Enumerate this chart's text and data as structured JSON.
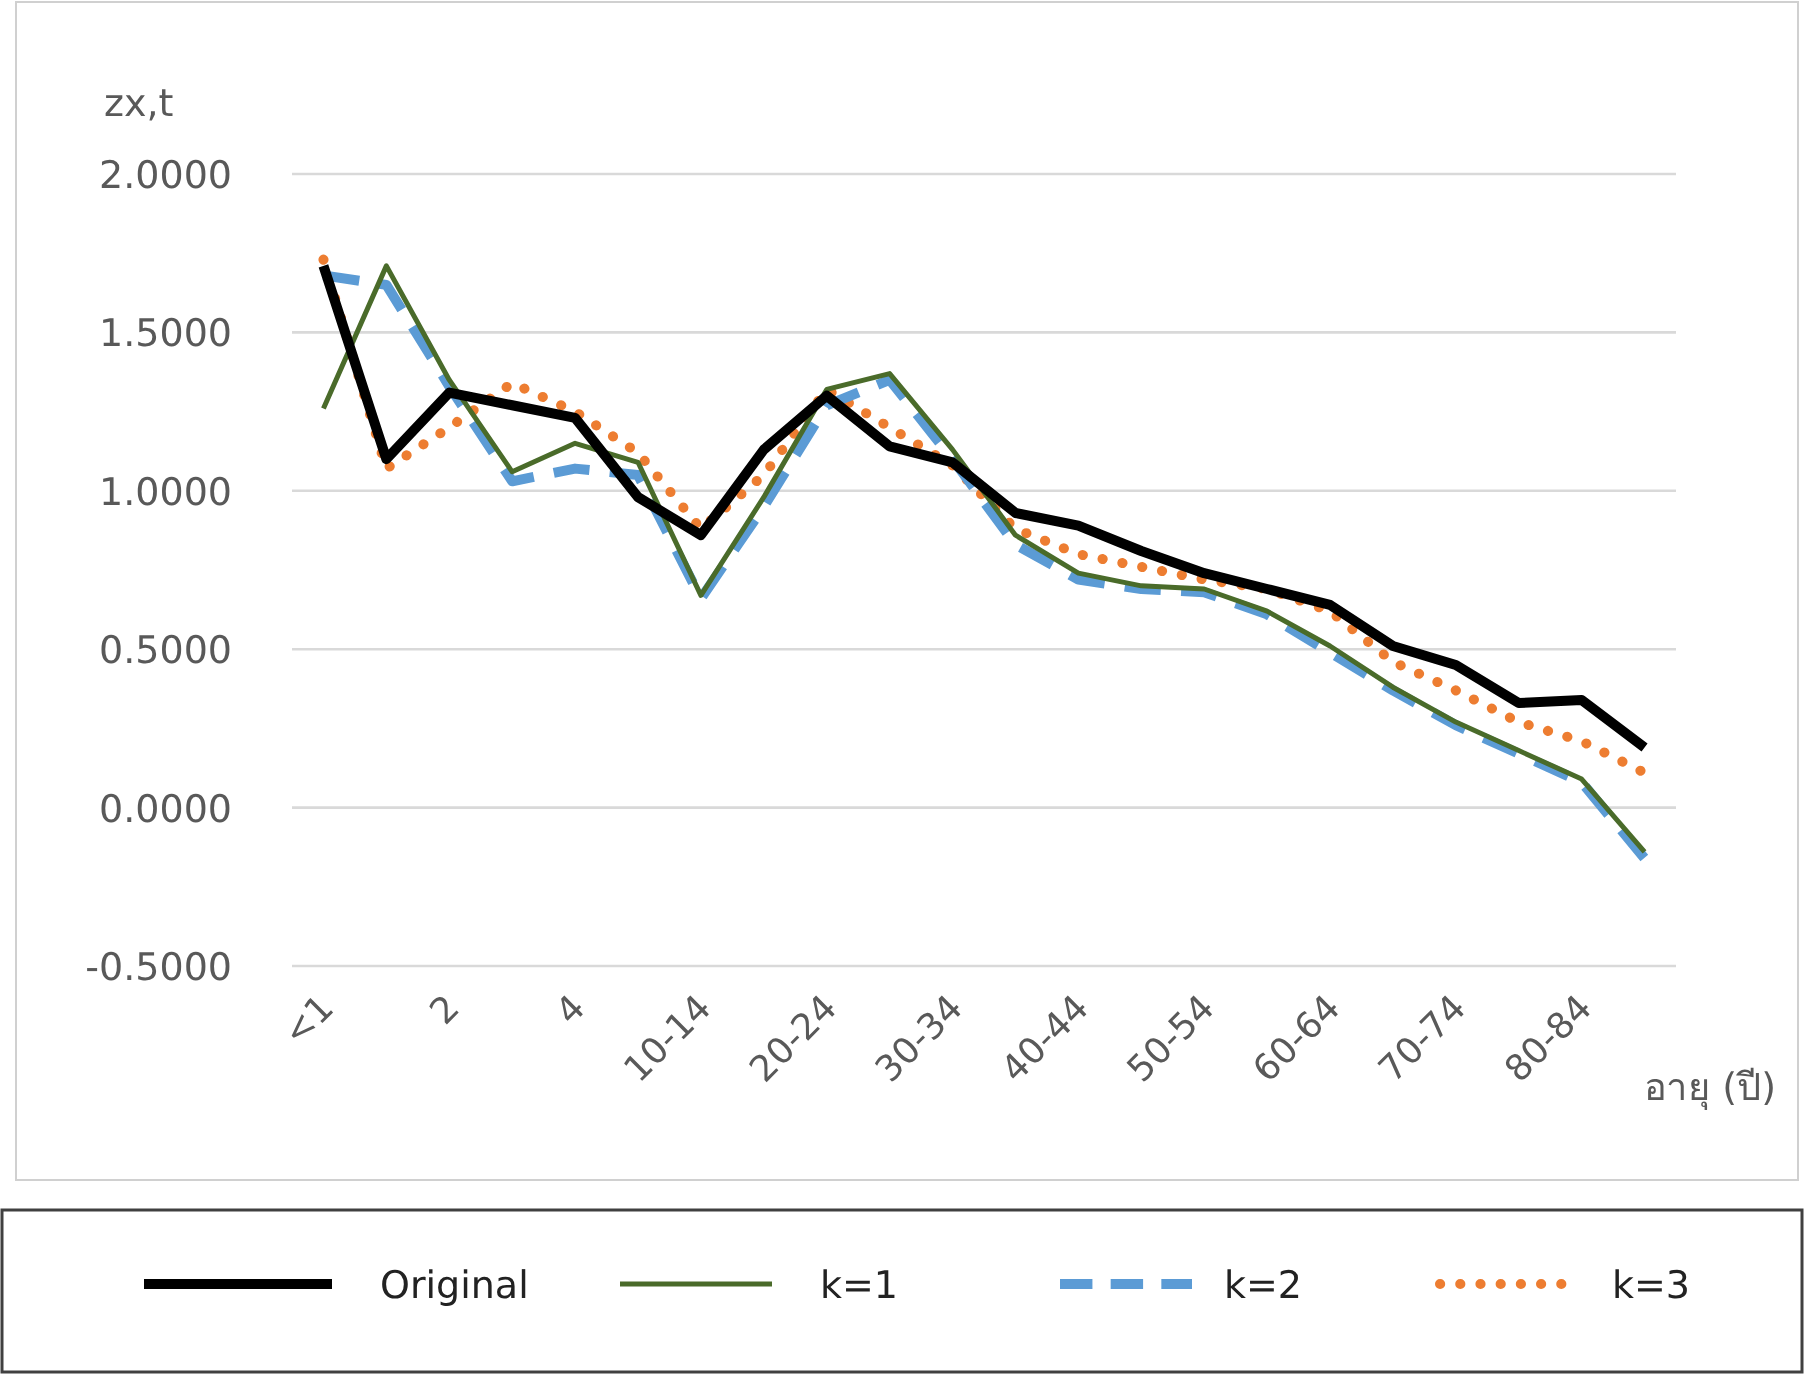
{
  "chart_data": {
    "type": "line",
    "ylabel": "zx,t",
    "xlabel": "อายุ (ปี)",
    "categories": [
      "<1",
      null,
      "2",
      null,
      "4",
      null,
      "10-14",
      null,
      "20-24",
      null,
      "30-34",
      null,
      "40-44",
      null,
      "50-54",
      null,
      "60-64",
      null,
      "70-74",
      null,
      "80-84",
      null
    ],
    "series": [
      {
        "name": "Original",
        "color": "#000000",
        "line_style": "solid",
        "values": [
          1.71,
          1.1,
          1.31,
          1.27,
          1.23,
          0.98,
          0.86,
          1.13,
          1.3,
          1.14,
          1.09,
          0.93,
          0.89,
          0.81,
          0.74,
          0.69,
          0.64,
          0.51,
          0.45,
          0.33,
          0.34,
          0.19
        ]
      },
      {
        "name": "k=1",
        "color": "#4a6b2a",
        "line_style": "solid",
        "values": [
          1.26,
          1.71,
          1.35,
          1.06,
          1.15,
          1.09,
          0.67,
          0.98,
          1.32,
          1.37,
          1.13,
          0.86,
          0.74,
          0.7,
          0.69,
          0.62,
          0.51,
          0.38,
          0.27,
          0.18,
          0.09,
          -0.14
        ]
      },
      {
        "name": "k=2",
        "color": "#5b9bd5",
        "line_style": "dashed",
        "values": [
          1.68,
          1.65,
          1.33,
          1.03,
          1.07,
          1.05,
          0.66,
          0.95,
          1.27,
          1.35,
          1.1,
          0.83,
          0.72,
          0.69,
          0.68,
          0.61,
          0.49,
          0.37,
          0.26,
          0.17,
          0.08,
          -0.16
        ]
      },
      {
        "name": "k=3",
        "color": "#ed7d31",
        "line_style": "dotted",
        "values": [
          1.73,
          1.07,
          1.2,
          1.34,
          1.25,
          1.12,
          0.88,
          1.05,
          1.32,
          1.2,
          1.08,
          0.88,
          0.8,
          0.76,
          0.72,
          0.69,
          0.62,
          0.46,
          0.37,
          0.27,
          0.21,
          0.11
        ]
      }
    ],
    "ylim": [
      -0.5,
      2.0
    ],
    "yticks": [
      {
        "value": -0.5,
        "label": "-0.5000"
      },
      {
        "value": 0,
        "label": "0.0000"
      },
      {
        "value": 0.5,
        "label": "0.5000"
      },
      {
        "value": 1.0,
        "label": "1.0000"
      },
      {
        "value": 1.5,
        "label": "1.5000"
      },
      {
        "value": 2.0,
        "label": "2.0000"
      }
    ],
    "grid": "y",
    "legend": "bottom",
    "marker": "none"
  }
}
